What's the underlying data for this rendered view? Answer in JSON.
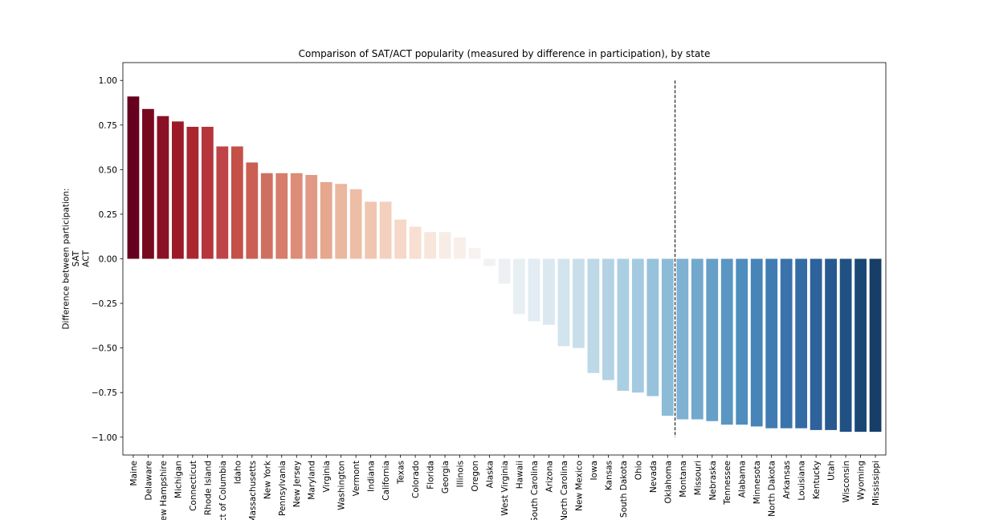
{
  "chart_data": {
    "type": "bar",
    "title": "Comparison of SAT/ACT popularity (measured by difference in participation), by state",
    "xlabel": "",
    "ylabel_lines": [
      "Difference between participation:",
      "SAT",
      "ACT"
    ],
    "ylim": [
      -1.1,
      1.1
    ],
    "yticks": [
      1.0,
      0.75,
      0.5,
      0.25,
      0.0,
      -0.25,
      -0.5,
      -0.75,
      -1.0
    ],
    "ytick_labels": [
      "1.00",
      "0.75",
      "0.50",
      "0.25",
      "0.00",
      "−0.25",
      "−0.50",
      "−0.75",
      "−1.00"
    ],
    "grid": false,
    "legend": "none",
    "colormap": "RdBu (red for positive, blue for negative)",
    "categories": [
      "Maine",
      "Delaware",
      "New Hampshire",
      "Michigan",
      "Connecticut",
      "Rhode Island",
      "District of Columbia",
      "Idaho",
      "Massachusetts",
      "New York",
      "Pennsylvania",
      "New Jersey",
      "Maryland",
      "Virginia",
      "Washington",
      "Vermont",
      "Indiana",
      "California",
      "Texas",
      "Colorado",
      "Florida",
      "Georgia",
      "Illinois",
      "Oregon",
      "Alaska",
      "West Virginia",
      "Hawaii",
      "South Carolina",
      "Arizona",
      "North Carolina",
      "New Mexico",
      "Iowa",
      "Kansas",
      "South Dakota",
      "Ohio",
      "Nevada",
      "Oklahoma",
      "Montana",
      "Missouri",
      "Nebraska",
      "Tennessee",
      "Alabama",
      "Minnesota",
      "North Dakota",
      "Arkansas",
      "Louisiana",
      "Kentucky",
      "Utah",
      "Wisconsin",
      "Wyoming",
      "Mississippi"
    ],
    "values": [
      0.91,
      0.84,
      0.8,
      0.77,
      0.74,
      0.74,
      0.63,
      0.63,
      0.54,
      0.48,
      0.48,
      0.48,
      0.47,
      0.43,
      0.42,
      0.39,
      0.32,
      0.32,
      0.22,
      0.18,
      0.15,
      0.15,
      0.12,
      0.06,
      -0.04,
      -0.14,
      -0.31,
      -0.35,
      -0.37,
      -0.49,
      -0.5,
      -0.64,
      -0.68,
      -0.74,
      -0.75,
      -0.77,
      -0.88,
      -0.9,
      -0.9,
      -0.91,
      -0.93,
      -0.93,
      -0.94,
      -0.95,
      -0.95,
      -0.95,
      -0.96,
      -0.96,
      -0.97,
      -0.97,
      -0.97
    ],
    "colors": [
      "#67001f",
      "#77091f",
      "#8a1125",
      "#9c1a28",
      "#ab2730",
      "#b6353a",
      "#bf4447",
      "#c55048",
      "#cb5f54",
      "#d06f61",
      "#d67e6b",
      "#dc8c78",
      "#e19985",
      "#e6a78e",
      "#eab89f",
      "#eebda5",
      "#f0c6b0",
      "#f3d0bd",
      "#f5d8c8",
      "#f7dfd2",
      "#f8e6dc",
      "#f8ece6",
      "#f8eeea",
      "#f7f1ef",
      "#f2f2f2",
      "#edf0f2",
      "#e8eff3",
      "#e2ecf2",
      "#dbe8f0",
      "#d2e4ee",
      "#c8dfeb",
      "#bdd8e7",
      "#b3d3e4",
      "#abcfe2",
      "#a3cae0",
      "#97c2db",
      "#8cbbd8",
      "#7eb1d2",
      "#72a8cd",
      "#669fc8",
      "#5b96c3",
      "#4f8dbe",
      "#4784b8",
      "#407cb2",
      "#3a73ab",
      "#336ba4",
      "#2d629b",
      "#275990",
      "#215083",
      "#1b4775",
      "#163e67"
    ],
    "vline": {
      "x_category": "Oklahoma",
      "offset": 0.5,
      "ymin": -1.0,
      "ymax": 1.0,
      "style": "dashed"
    }
  }
}
